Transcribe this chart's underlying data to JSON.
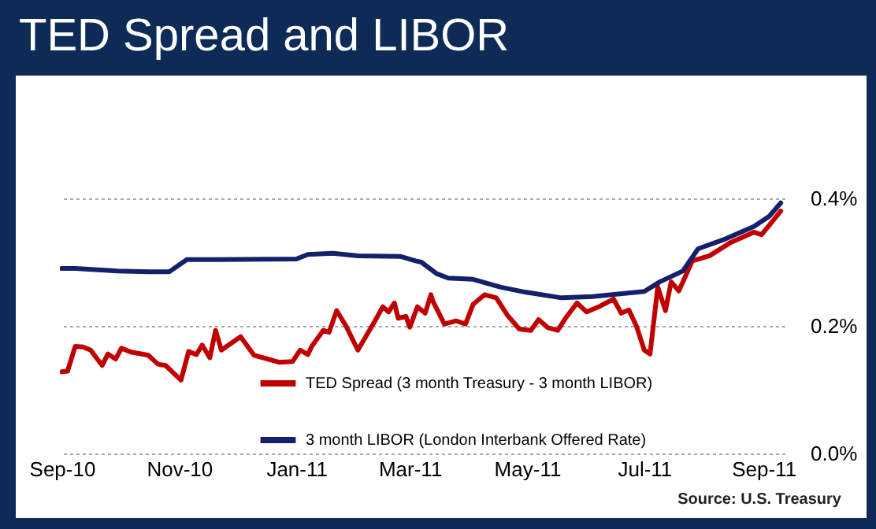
{
  "chart_data": {
    "type": "line",
    "title": "TED Spread and LIBOR",
    "annotations": [
      "Source: U.S. Treasury"
    ],
    "xlim": [
      "2010-08-31",
      "2011-09-12"
    ],
    "xticks": [
      {
        "value": "2010-09-01",
        "label": "Sep-10"
      },
      {
        "value": "2010-11-01",
        "label": "Nov-10"
      },
      {
        "value": "2011-01-01",
        "label": "Jan-11"
      },
      {
        "value": "2011-03-01",
        "label": "Mar-11"
      },
      {
        "value": "2011-05-01",
        "label": "May-11"
      },
      {
        "value": "2011-07-01",
        "label": "Jul-11"
      },
      {
        "value": "2011-09-01",
        "label": "Sep-11"
      }
    ],
    "ylim": [
      0,
      0.4
    ],
    "yticks": [
      {
        "value": 0,
        "label": "0.0%"
      },
      {
        "value": 0.2,
        "label": "0.2%"
      },
      {
        "value": 0.4,
        "label": "0.4%"
      }
    ],
    "grid": "y",
    "legend": "bottom",
    "marker": "none",
    "line_style": "solid",
    "series": [
      {
        "name": "TED Spread (3 month Treasury - 3 month LIBOR)",
        "color": "#c00000",
        "x": [
          "2010-09-01",
          "2010-09-04",
          "2010-09-08",
          "2010-09-12",
          "2010-09-16",
          "2010-09-22",
          "2010-09-25",
          "2010-09-29",
          "2010-10-02",
          "2010-10-07",
          "2010-10-16",
          "2010-10-21",
          "2010-10-25",
          "2010-11-02",
          "2010-11-06",
          "2010-11-10",
          "2010-11-13",
          "2010-11-17",
          "2010-11-20",
          "2010-11-23",
          "2010-12-03",
          "2010-12-10",
          "2010-12-23",
          "2010-12-30",
          "2011-01-03",
          "2011-01-07",
          "2011-01-09",
          "2011-01-15",
          "2011-01-18",
          "2011-01-22",
          "2011-01-27",
          "2011-02-02",
          "2011-02-10",
          "2011-02-15",
          "2011-02-18",
          "2011-02-21",
          "2011-02-23",
          "2011-02-27",
          "2011-03-01",
          "2011-03-05",
          "2011-03-09",
          "2011-03-12",
          "2011-03-13",
          "2011-03-19",
          "2011-03-25",
          "2011-03-30",
          "2011-04-03",
          "2011-04-09",
          "2011-04-15",
          "2011-04-21",
          "2011-04-27",
          "2011-05-03",
          "2011-05-07",
          "2011-05-12",
          "2011-05-17",
          "2011-05-21",
          "2011-05-27",
          "2011-06-01",
          "2011-06-08",
          "2011-06-15",
          "2011-06-19",
          "2011-06-23",
          "2011-06-27",
          "2011-07-01",
          "2011-07-04",
          "2011-07-08",
          "2011-07-12",
          "2011-07-15",
          "2011-07-19",
          "2011-07-26",
          "2011-08-04",
          "2011-08-15",
          "2011-08-27",
          "2011-08-31",
          "2011-09-10"
        ],
        "values": [
          0.128,
          0.129,
          0.168,
          0.167,
          0.162,
          0.138,
          0.156,
          0.148,
          0.165,
          0.159,
          0.154,
          0.14,
          0.138,
          0.115,
          0.16,
          0.155,
          0.17,
          0.15,
          0.193,
          0.162,
          0.183,
          0.154,
          0.143,
          0.144,
          0.162,
          0.155,
          0.168,
          0.193,
          0.19,
          0.224,
          0.199,
          0.162,
          0.203,
          0.23,
          0.222,
          0.236,
          0.212,
          0.215,
          0.198,
          0.23,
          0.22,
          0.249,
          0.239,
          0.203,
          0.208,
          0.203,
          0.234,
          0.249,
          0.244,
          0.216,
          0.195,
          0.193,
          0.21,
          0.197,
          0.193,
          0.212,
          0.236,
          0.222,
          0.231,
          0.242,
          0.22,
          0.225,
          0.199,
          0.162,
          0.156,
          0.261,
          0.224,
          0.269,
          0.255,
          0.302,
          0.31,
          0.331,
          0.347,
          0.343,
          0.38
        ]
      },
      {
        "name": "3 month LIBOR (London Interbank Offered Rate)",
        "color": "#14206b",
        "x": [
          "2010-09-01",
          "2010-09-08",
          "2010-09-30",
          "2010-10-16",
          "2010-10-27",
          "2010-11-05",
          "2010-11-21",
          "2011-01-01",
          "2011-01-07",
          "2011-01-20",
          "2011-02-02",
          "2011-02-24",
          "2011-03-04",
          "2011-03-07",
          "2011-03-15",
          "2011-03-21",
          "2011-04-03",
          "2011-04-17",
          "2011-04-30",
          "2011-05-19",
          "2011-06-04",
          "2011-07-01",
          "2011-07-09",
          "2011-07-21",
          "2011-07-29",
          "2011-08-11",
          "2011-08-27",
          "2011-09-04",
          "2011-09-10"
        ],
        "values": [
          0.29,
          0.29,
          0.286,
          0.285,
          0.285,
          0.304,
          0.304,
          0.305,
          0.312,
          0.314,
          0.31,
          0.309,
          0.302,
          0.3,
          0.282,
          0.275,
          0.273,
          0.261,
          0.253,
          0.244,
          0.246,
          0.254,
          0.269,
          0.286,
          0.321,
          0.335,
          0.356,
          0.372,
          0.393
        ]
      }
    ]
  }
}
